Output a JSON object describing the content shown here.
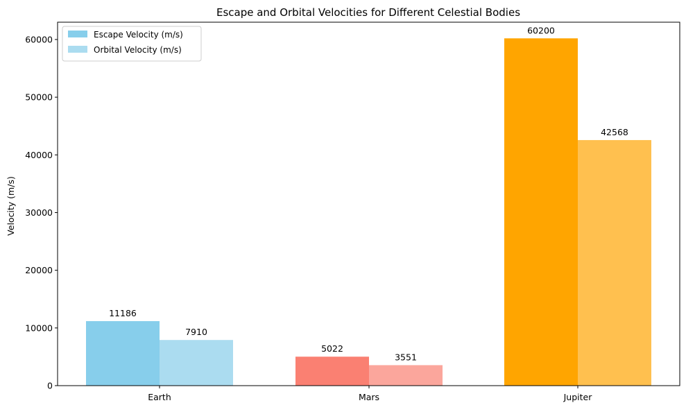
{
  "chart_data": {
    "type": "bar",
    "title": "Escape and Orbital Velocities for Different Celestial Bodies",
    "xlabel": "",
    "ylabel": "Velocity (m/s)",
    "categories": [
      "Earth",
      "Mars",
      "Jupiter"
    ],
    "ylim": [
      0,
      63000
    ],
    "yticks": [
      0,
      10000,
      20000,
      30000,
      40000,
      50000,
      60000
    ],
    "grid": false,
    "legend_position": "top-left",
    "series": [
      {
        "name": "Escape Velocity (m/s)",
        "values": [
          11186,
          5022,
          60200
        ],
        "colors": [
          "#87ceeb",
          "#fa8072",
          "#ffa500"
        ],
        "legend_color": "#87ceeb"
      },
      {
        "name": "Orbital Velocity (m/s)",
        "values": [
          7910,
          3551,
          42568
        ],
        "colors": [
          "#abdcf0",
          "#fba69c",
          "#ffc04f"
        ],
        "legend_color": "#abdcf0"
      }
    ]
  }
}
